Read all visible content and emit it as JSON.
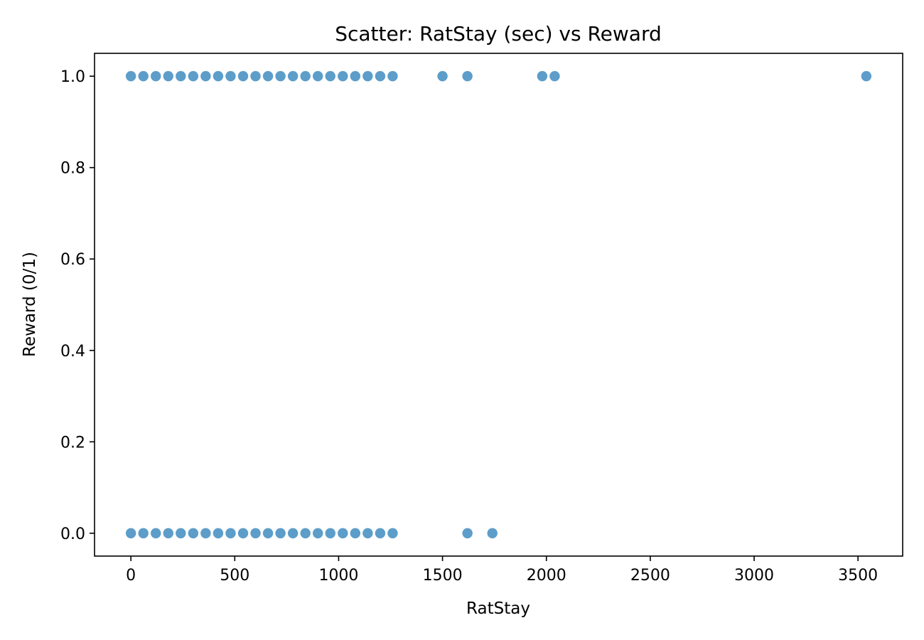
{
  "chart_data": {
    "type": "scatter",
    "title": "Scatter: RatStay (sec) vs Reward",
    "xlabel": "RatStay",
    "ylabel": "Reward (0/1)",
    "xlim": [
      -175,
      3715
    ],
    "ylim": [
      -0.05,
      1.05
    ],
    "xticks": [
      0,
      500,
      1000,
      1500,
      2000,
      2500,
      3000,
      3500
    ],
    "xtick_labels": [
      "0",
      "500",
      "1000",
      "1500",
      "2000",
      "2500",
      "3000",
      "3500"
    ],
    "yticks": [
      0.0,
      0.2,
      0.4,
      0.6,
      0.8,
      1.0
    ],
    "ytick_labels": [
      "0.0",
      "0.2",
      "0.4",
      "0.6",
      "0.8",
      "1.0"
    ],
    "grid": false,
    "marker_color": "#1f77b4",
    "series": [
      {
        "points": [
          {
            "x": 0,
            "y": 1
          },
          {
            "x": 60,
            "y": 1
          },
          {
            "x": 120,
            "y": 1
          },
          {
            "x": 180,
            "y": 1
          },
          {
            "x": 240,
            "y": 1
          },
          {
            "x": 300,
            "y": 1
          },
          {
            "x": 360,
            "y": 1
          },
          {
            "x": 420,
            "y": 1
          },
          {
            "x": 480,
            "y": 1
          },
          {
            "x": 540,
            "y": 1
          },
          {
            "x": 600,
            "y": 1
          },
          {
            "x": 660,
            "y": 1
          },
          {
            "x": 720,
            "y": 1
          },
          {
            "x": 780,
            "y": 1
          },
          {
            "x": 840,
            "y": 1
          },
          {
            "x": 900,
            "y": 1
          },
          {
            "x": 960,
            "y": 1
          },
          {
            "x": 1020,
            "y": 1
          },
          {
            "x": 1080,
            "y": 1
          },
          {
            "x": 1140,
            "y": 1
          },
          {
            "x": 1200,
            "y": 1
          },
          {
            "x": 1260,
            "y": 1
          },
          {
            "x": 1500,
            "y": 1
          },
          {
            "x": 1620,
            "y": 1
          },
          {
            "x": 1980,
            "y": 1
          },
          {
            "x": 2040,
            "y": 1
          },
          {
            "x": 3540,
            "y": 1
          },
          {
            "x": 0,
            "y": 0
          },
          {
            "x": 60,
            "y": 0
          },
          {
            "x": 120,
            "y": 0
          },
          {
            "x": 180,
            "y": 0
          },
          {
            "x": 240,
            "y": 0
          },
          {
            "x": 300,
            "y": 0
          },
          {
            "x": 360,
            "y": 0
          },
          {
            "x": 420,
            "y": 0
          },
          {
            "x": 480,
            "y": 0
          },
          {
            "x": 540,
            "y": 0
          },
          {
            "x": 600,
            "y": 0
          },
          {
            "x": 660,
            "y": 0
          },
          {
            "x": 720,
            "y": 0
          },
          {
            "x": 780,
            "y": 0
          },
          {
            "x": 840,
            "y": 0
          },
          {
            "x": 900,
            "y": 0
          },
          {
            "x": 960,
            "y": 0
          },
          {
            "x": 1020,
            "y": 0
          },
          {
            "x": 1080,
            "y": 0
          },
          {
            "x": 1140,
            "y": 0
          },
          {
            "x": 1200,
            "y": 0
          },
          {
            "x": 1260,
            "y": 0
          },
          {
            "x": 1620,
            "y": 0
          },
          {
            "x": 1740,
            "y": 0
          }
        ]
      }
    ]
  }
}
